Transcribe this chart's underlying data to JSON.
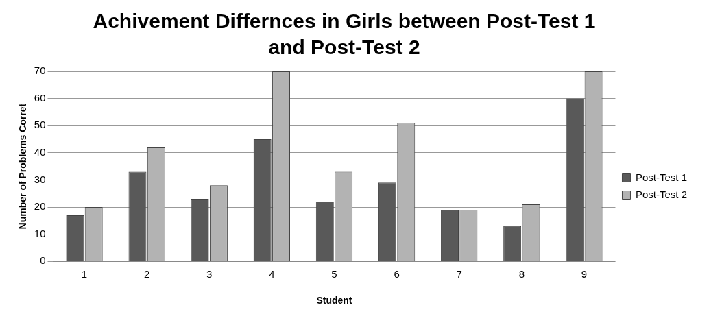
{
  "chart_data": {
    "type": "bar",
    "title": "Achivement Differnces in Girls between Post-Test 1 and Post-Test 2",
    "xlabel": "Student",
    "ylabel": "Number of Problems Corret",
    "categories": [
      "1",
      "2",
      "3",
      "4",
      "5",
      "6",
      "7",
      "8",
      "9"
    ],
    "series": [
      {
        "name": "Post-Test 1",
        "color": "#595959",
        "values": [
          17,
          33,
          23,
          45,
          22,
          29,
          19,
          13,
          60
        ]
      },
      {
        "name": "Post-Test 2",
        "color": "#b3b3b3",
        "values": [
          20,
          42,
          28,
          70,
          33,
          51,
          19,
          21,
          70
        ]
      }
    ],
    "ylim": [
      0,
      70
    ],
    "yticks": [
      0,
      10,
      20,
      30,
      40,
      50,
      60,
      70
    ],
    "grid": "y",
    "legend": "right"
  }
}
